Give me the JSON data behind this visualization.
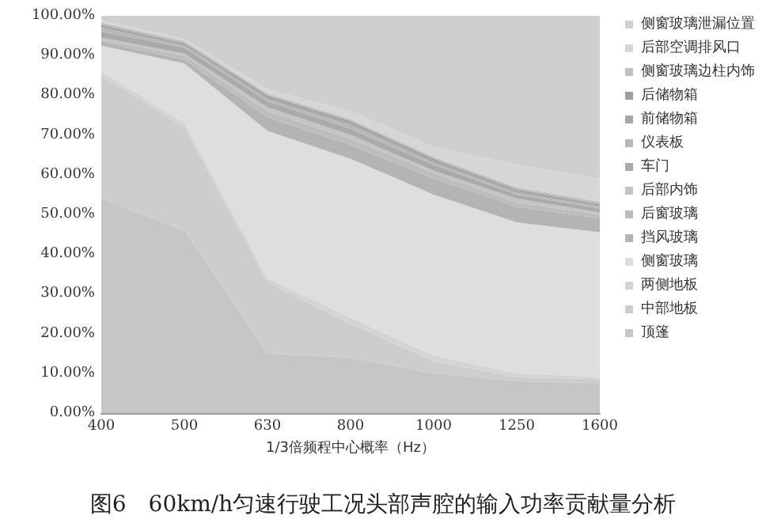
{
  "chart_data": {
    "type": "area",
    "stacked": true,
    "title": "图6　60km/h匀速行驶工况头部声腔的输入功率贡献量分析",
    "xlabel": "1/3倍频程中心概率（Hz）",
    "categories": [
      "400",
      "500",
      "630",
      "800",
      "1000",
      "1250",
      "1600"
    ],
    "ylim": [
      0,
      100
    ],
    "yticks": [
      {
        "value": 0,
        "label": "0.00%"
      },
      {
        "value": 10,
        "label": "10.00%"
      },
      {
        "value": 20,
        "label": "20.00%"
      },
      {
        "value": 30,
        "label": "30.00%"
      },
      {
        "value": 40,
        "label": "40.00%"
      },
      {
        "value": 50,
        "label": "50.00%"
      },
      {
        "value": 60,
        "label": "60.00%"
      },
      {
        "value": 70,
        "label": "70.00%"
      },
      {
        "value": 80,
        "label": "80.00%"
      },
      {
        "value": 90,
        "label": "90.00%"
      },
      {
        "value": 100,
        "label": "100.00%"
      }
    ],
    "grid": false,
    "legend": "right",
    "series": [
      {
        "name": "顶篷",
        "color": "#c6c6c6",
        "values": [
          54,
          46,
          15,
          14,
          10,
          8,
          7.5
        ]
      },
      {
        "name": "中部地板",
        "color": "#cdcdcd",
        "values": [
          31,
          26,
          18,
          8.5,
          3,
          1,
          1
        ]
      },
      {
        "name": "两侧地板",
        "color": "#d4d4d4",
        "values": [
          1,
          1,
          1,
          1.5,
          1.5,
          1,
          0.5
        ]
      },
      {
        "name": "侧窗玻璃",
        "color": "#dedede",
        "values": [
          6.5,
          15,
          37,
          40,
          40.5,
          38,
          36.5
        ]
      },
      {
        "name": "挡风玻璃",
        "color": "#b4b4b4",
        "values": [
          1,
          1,
          3.5,
          3.5,
          4,
          4,
          3.5
        ]
      },
      {
        "name": "后窗玻璃",
        "color": "#bdbdbd",
        "values": [
          0.5,
          1,
          1.5,
          1.5,
          1.5,
          1,
          1
        ]
      },
      {
        "name": "后部内饰",
        "color": "#c4c4c4",
        "values": [
          0.5,
          0.5,
          1,
          1,
          0.5,
          1,
          0.5
        ]
      },
      {
        "name": "车门",
        "color": "#aaaaaa",
        "values": [
          1.5,
          1.5,
          1.5,
          1.5,
          1.5,
          1,
          1
        ]
      },
      {
        "name": "仪表板",
        "color": "#b8b8b8",
        "values": [
          1,
          0.5,
          0.5,
          1,
          0.5,
          0.5,
          0.5
        ]
      },
      {
        "name": "前储物箱",
        "color": "#a6a6a6",
        "values": [
          0.5,
          0.5,
          0.5,
          0.5,
          0.5,
          0.5,
          0.5
        ]
      },
      {
        "name": "后储物箱",
        "color": "#9e9e9e",
        "values": [
          0.3,
          0.2,
          0.5,
          0.5,
          0.5,
          0.3,
          0.2
        ]
      },
      {
        "name": "侧窗玻璃边柱内饰",
        "color": "#c0c0c0",
        "values": [
          0.5,
          0.5,
          0.5,
          0.5,
          0.5,
          0.5,
          0.5
        ]
      },
      {
        "name": "后部空调排风口",
        "color": "#d6d6d6",
        "values": [
          0.5,
          0.5,
          1,
          2,
          2.5,
          5.7,
          5.8
        ]
      },
      {
        "name": "侧窗玻璃泄漏位置",
        "color": "#cfcfcf",
        "values": [
          1.2,
          5.8,
          18.5,
          24,
          33,
          37.5,
          41
        ]
      }
    ]
  }
}
